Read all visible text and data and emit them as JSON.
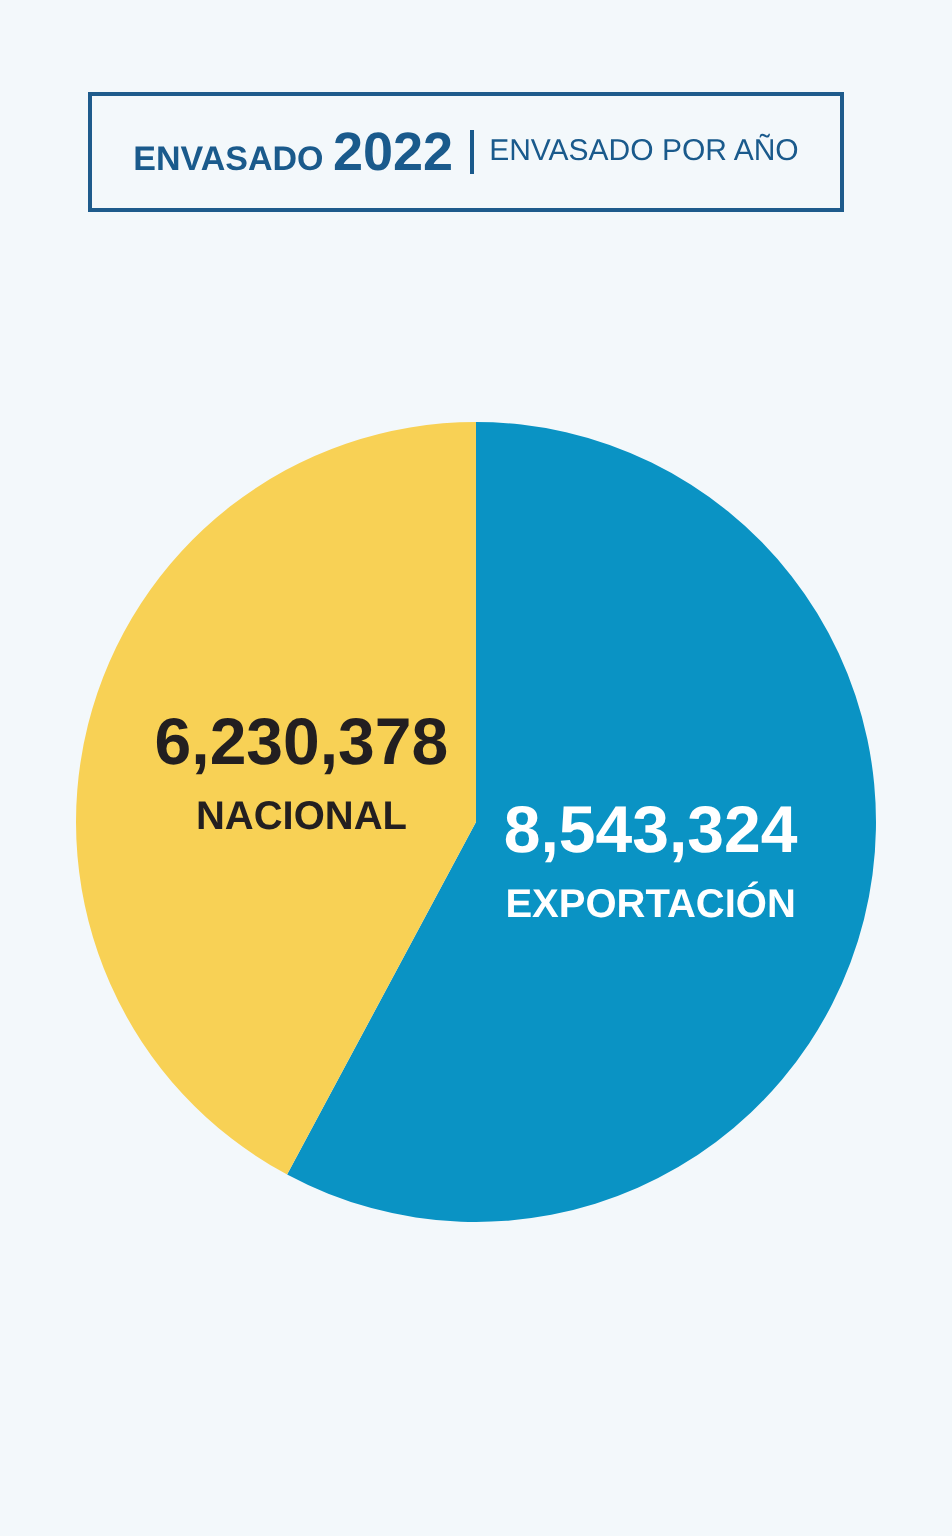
{
  "chart_data": {
    "type": "pie",
    "title": "ENVASADO 2022",
    "subtitle": "ENVASADO POR AÑO",
    "categories": [
      "EXPORTACIÓN",
      "NACIONAL"
    ],
    "values": [
      8543324,
      6230378
    ],
    "colors": [
      "#0a93c4",
      "#f8d155"
    ],
    "value_labels": [
      "8,543,324",
      "6,230,378"
    ],
    "legend": false
  }
}
